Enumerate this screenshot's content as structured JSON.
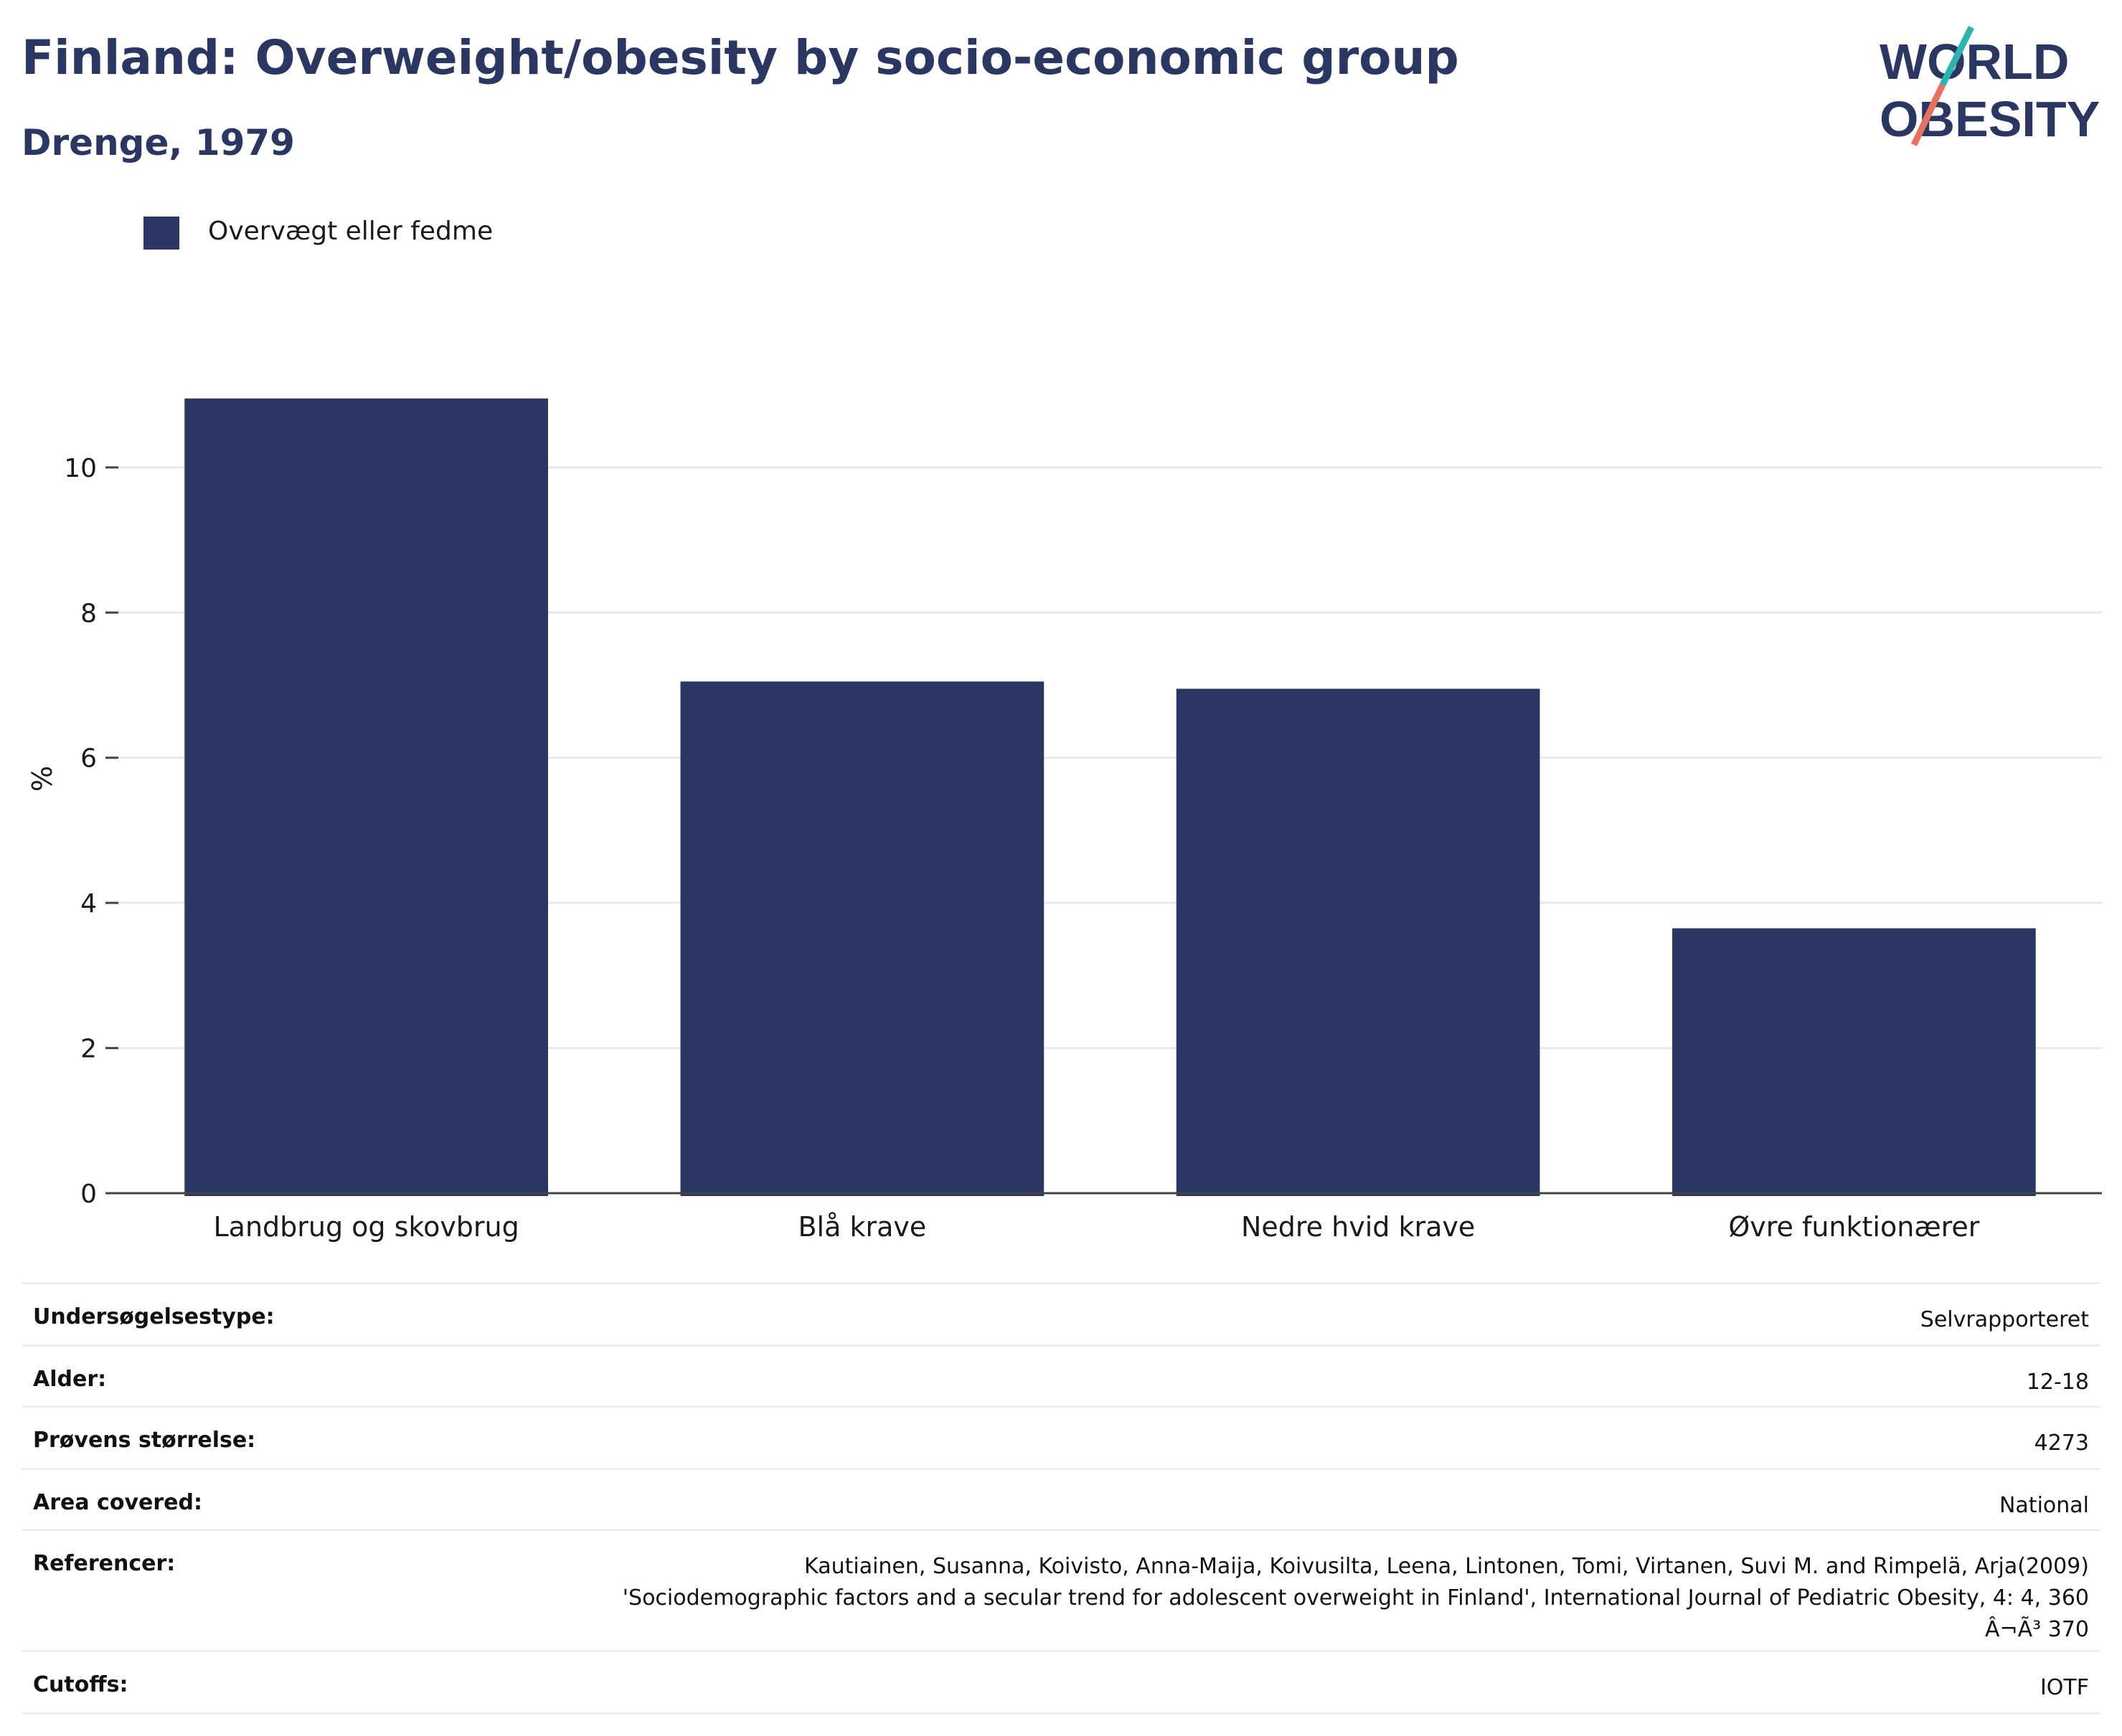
{
  "title": "Finland: Overweight/obesity by socio-economic group",
  "subtitle": "Drenge, 1979",
  "logo": {
    "line1": "WORLD",
    "line2": "OBESITY"
  },
  "colors": {
    "bar": "#2a3763",
    "title": "#2a3763",
    "logo_teal": "#2bb5b0",
    "logo_coral": "#e8705f"
  },
  "chart_data": {
    "type": "bar",
    "categories": [
      "Landbrug og skovbrug",
      "Blå krave",
      "Nedre hvid krave",
      "Øvre funktionærer"
    ],
    "series": [
      {
        "name": "Overvægt eller fedme",
        "values": [
          10.95,
          7.05,
          6.95,
          3.65
        ]
      }
    ],
    "ylabel": "%",
    "ylim": [
      0,
      11.5
    ],
    "yticks": [
      0,
      2,
      4,
      6,
      8,
      10
    ],
    "grid": true,
    "legend": "top-left"
  },
  "info": [
    {
      "key": "Undersøgelsestype:",
      "value": "Selvrapporteret"
    },
    {
      "key": "Alder:",
      "value": "12-18"
    },
    {
      "key": "Prøvens størrelse:",
      "value": "4273"
    },
    {
      "key": "Area covered:",
      "value": "National"
    },
    {
      "key": "Referencer:",
      "value_lines": [
        "Kautiainen, Susanna, Koivisto, Anna-Maija, Koivusilta, Leena, Lintonen, Tomi, Virtanen, Suvi M. and Rimpelä, Arja(2009)",
        "'Sociodemographic factors and a secular trend for adolescent overweight in Finland', International Journal of Pediatric Obesity, 4: 4, 360",
        "Â¬Ã³ 370"
      ]
    },
    {
      "key": "Cutoffs:",
      "value": "IOTF"
    }
  ]
}
